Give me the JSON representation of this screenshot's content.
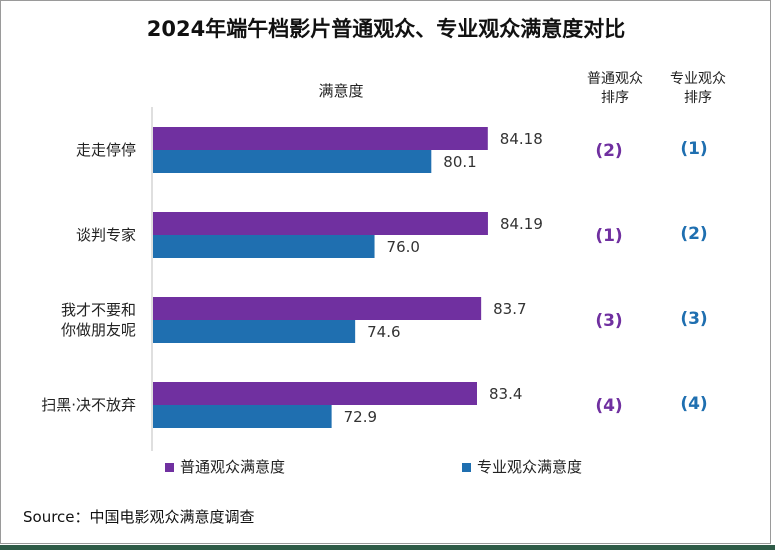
{
  "chart_data": {
    "type": "bar",
    "orientation": "horizontal",
    "title": "2024年端午档影片普通观众、专业观众满意度对比",
    "axis_title": "满意度",
    "categories": [
      [
        "走走停停"
      ],
      [
        "谈判专家"
      ],
      [
        "我才不要和",
        "你做朋友呢"
      ],
      [
        "扫黑·决不放弃"
      ]
    ],
    "series": [
      {
        "name": "普通观众满意度",
        "color": "#7030a0",
        "values": [
          84.18,
          84.19,
          83.7,
          83.4
        ],
        "labels": [
          "84.18",
          "84.19",
          "83.7",
          "83.4"
        ]
      },
      {
        "name": "专业观众满意度",
        "color": "#1f6fb0",
        "values": [
          80.1,
          76.0,
          74.6,
          72.9
        ],
        "labels": [
          "80.1",
          "76.0",
          "74.6",
          "72.9"
        ]
      }
    ],
    "xlim": [
      60,
      86
    ],
    "rank_headers": [
      [
        "普通观众",
        "排序"
      ],
      [
        "专业观众",
        "排序"
      ]
    ],
    "ranks_general": [
      "(2)",
      "(1)",
      "(3)",
      "(4)"
    ],
    "ranks_professional": [
      "(1)",
      "(2)",
      "(3)",
      "(4)"
    ],
    "legend_position": "bottom",
    "source": "Source：中国电影观众满意度调查"
  }
}
